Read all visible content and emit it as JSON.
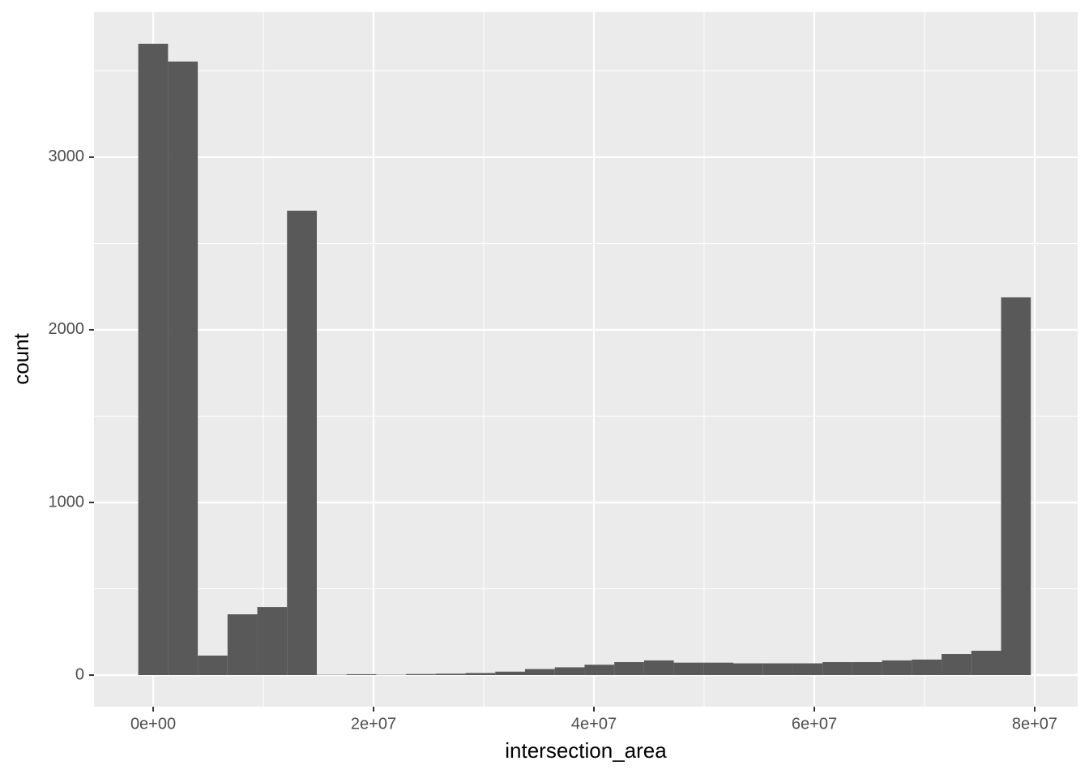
{
  "chart_data": {
    "type": "histogram",
    "xlabel": "intersection_area",
    "ylabel": "count",
    "bins": [
      -1350000,
      1350000,
      4050000,
      6750000,
      9450000,
      12150000,
      14850000,
      17550000,
      20250000,
      22950000,
      25650000,
      28350000,
      31050000,
      33750000,
      36450000,
      39150000,
      41850000,
      44550000,
      47250000,
      49950000,
      52650000,
      55350000,
      58050000,
      60750000,
      63450000,
      66150000,
      68850000,
      71550000,
      74250000,
      76950000,
      79650000
    ],
    "values": [
      3657,
      3554,
      113,
      352,
      394,
      2690,
      2,
      5,
      2,
      6,
      8,
      12,
      20,
      35,
      45,
      60,
      75,
      85,
      72,
      72,
      68,
      68,
      68,
      75,
      75,
      85,
      90,
      122,
      141,
      2188
    ],
    "color": "#595959",
    "xlim": [
      -5370000,
      83900000
    ],
    "xticks": [
      {
        "value": 0,
        "label": "0e+00"
      },
      {
        "value": 20000000,
        "label": "2e+07"
      },
      {
        "value": 40000000,
        "label": "4e+07"
      },
      {
        "value": 60000000,
        "label": "6e+07"
      },
      {
        "value": 80000000,
        "label": "8e+07"
      }
    ],
    "x_minor_grid": [
      10000000,
      30000000,
      50000000,
      70000000
    ],
    "ylim": [
      -183,
      3840
    ],
    "yticks": [
      0,
      1000,
      2000,
      3000
    ],
    "y_minor_grid": [
      500,
      1500,
      2500,
      3500
    ],
    "grid": true
  }
}
